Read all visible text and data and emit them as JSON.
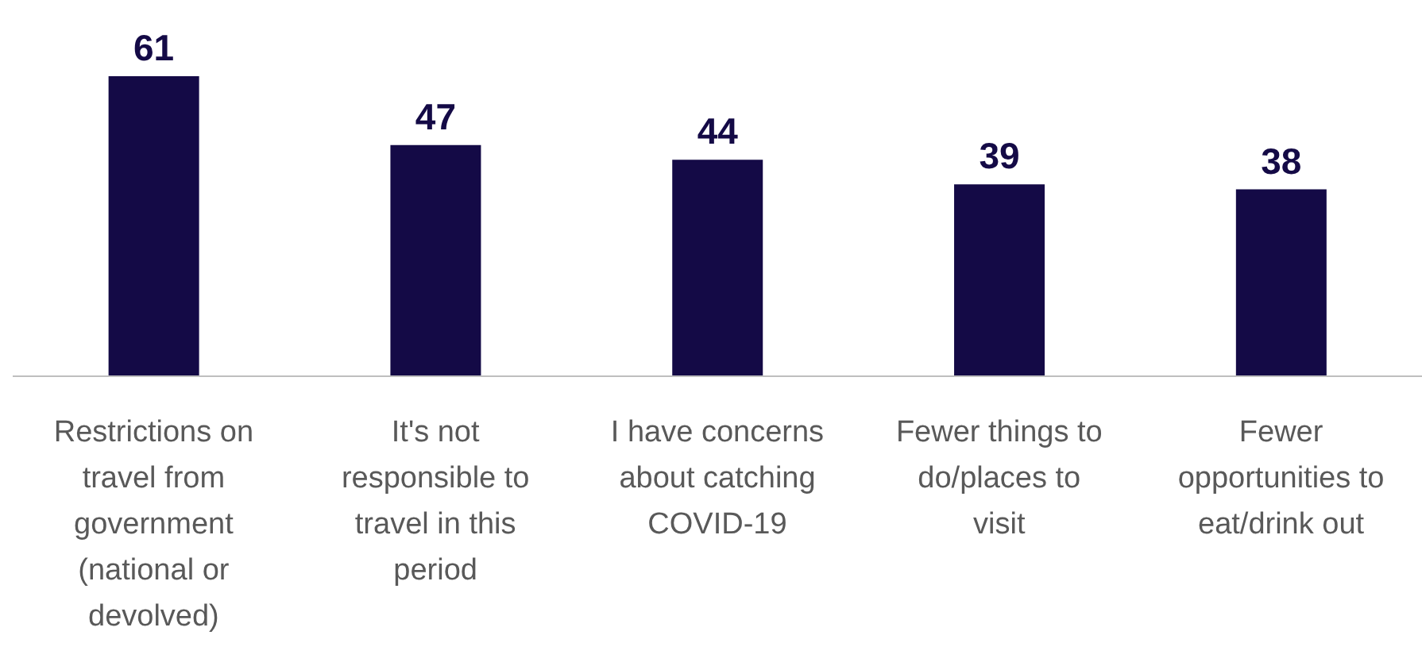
{
  "chart_data": {
    "type": "bar",
    "categories": [
      "Restrictions on travel from government (national or devolved)",
      "It's not responsible to travel in this period",
      "I have concerns about catching COVID-19",
      "Fewer things to do/places to visit",
      "Fewer opportunities to eat/drink out"
    ],
    "values": [
      61,
      47,
      44,
      39,
      38
    ],
    "color": "#140a46",
    "data_labels": true,
    "grid": false,
    "legend": false
  }
}
